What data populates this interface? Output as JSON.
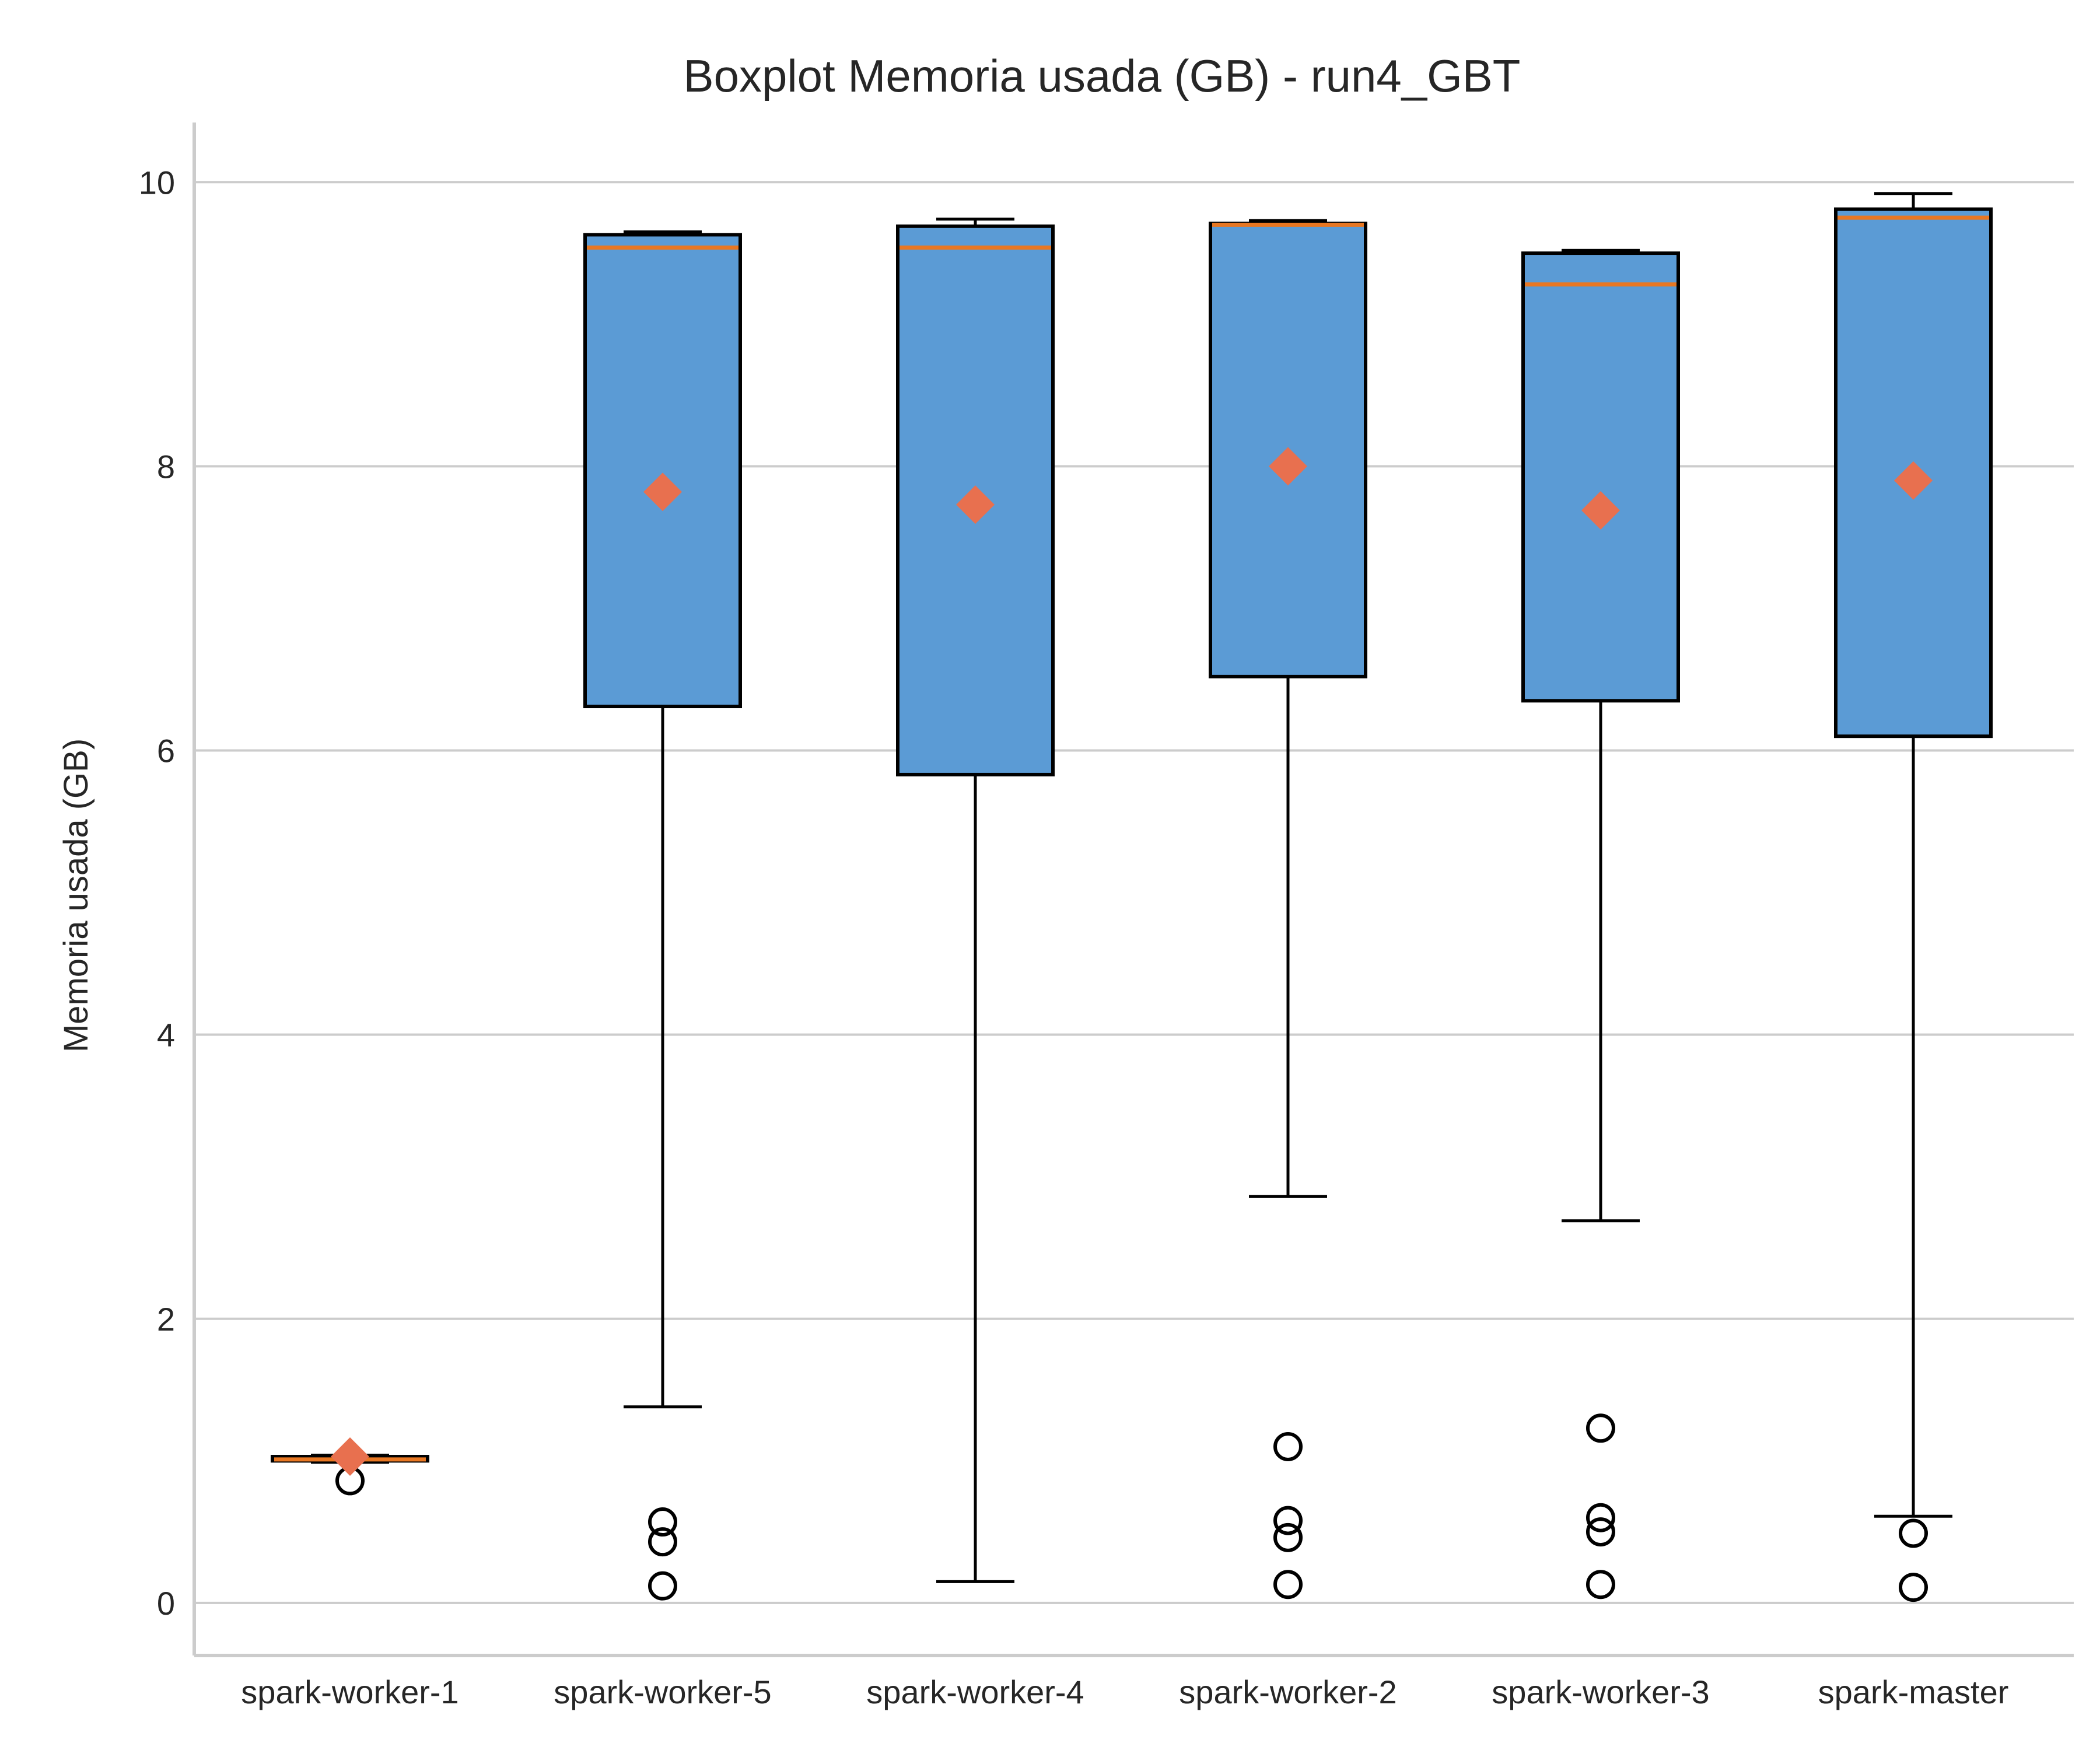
{
  "chart_data": {
    "type": "boxplot",
    "title": "Boxplot Memoria usada (GB) - run4_GBT",
    "xlabel": "",
    "ylabel": "Memoria usada (GB)",
    "ylim": [
      -0.37,
      10.42
    ],
    "yticks": [
      0,
      2,
      4,
      6,
      8,
      10
    ],
    "grid": "horizontal",
    "categories": [
      "spark-worker-1",
      "spark-worker-5",
      "spark-worker-4",
      "spark-worker-2",
      "spark-worker-3",
      "spark-master"
    ],
    "series": [
      {
        "whislo": 0.99,
        "q1": 1.0,
        "med": 1.01,
        "q3": 1.03,
        "whishi": 1.04,
        "mean": 1.03,
        "fliers": [
          0.86
        ]
      },
      {
        "whislo": 1.38,
        "q1": 6.31,
        "med": 9.54,
        "q3": 9.63,
        "whishi": 9.65,
        "mean": 7.82,
        "fliers": [
          0.57,
          0.43,
          0.12
        ]
      },
      {
        "whislo": 0.15,
        "q1": 5.83,
        "med": 9.54,
        "q3": 9.69,
        "whishi": 9.74,
        "mean": 7.73,
        "fliers": []
      },
      {
        "whislo": 2.86,
        "q1": 6.52,
        "med": 9.7,
        "q3": 9.71,
        "whishi": 9.73,
        "mean": 8.0,
        "fliers": [
          1.1,
          0.58,
          0.46,
          0.13
        ]
      },
      {
        "whislo": 2.69,
        "q1": 6.35,
        "med": 9.28,
        "q3": 9.5,
        "whishi": 9.52,
        "mean": 7.69,
        "fliers": [
          1.23,
          0.6,
          0.5,
          0.13
        ]
      },
      {
        "whislo": 0.61,
        "q1": 6.1,
        "med": 9.75,
        "q3": 9.81,
        "whishi": 9.92,
        "mean": 7.9,
        "fliers": [
          0.49,
          0.11
        ]
      }
    ],
    "colors": {
      "box_fill": "#5b9bd5",
      "median": "#e87722",
      "mean_marker": "#e8704f",
      "grid": "#cccccc",
      "spine": "#cccccc",
      "stroke": "#000000"
    }
  }
}
